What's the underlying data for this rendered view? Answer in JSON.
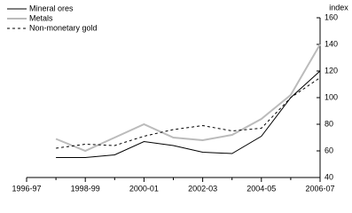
{
  "chart_data": {
    "type": "line",
    "y_label": "index",
    "categories": [
      "1996-97",
      null,
      "1998-99",
      null,
      "2000-01",
      null,
      "2002-03",
      null,
      "2004-05",
      null,
      "2006-07"
    ],
    "series": [
      {
        "name": "Mineral ores",
        "color": "#000000",
        "dash": "",
        "width": 1,
        "values": [
          null,
          55,
          55,
          57,
          67,
          64,
          59,
          58,
          71,
          100,
          120
        ]
      },
      {
        "name": "Metals",
        "color": "#bbbbbb",
        "dash": "",
        "width": 2,
        "values": [
          null,
          69,
          60,
          70,
          80,
          70,
          68,
          72,
          84,
          102,
          140
        ]
      },
      {
        "name": "Non-monetary gold",
        "color": "#000000",
        "dash": "3,3",
        "width": 1,
        "values": [
          null,
          62,
          65,
          64,
          71,
          76,
          79,
          75,
          77,
          100,
          115
        ]
      }
    ],
    "ylim": [
      40,
      160
    ],
    "yticks": [
      40,
      60,
      80,
      100,
      120,
      140,
      160
    ],
    "legend": "top-left"
  }
}
